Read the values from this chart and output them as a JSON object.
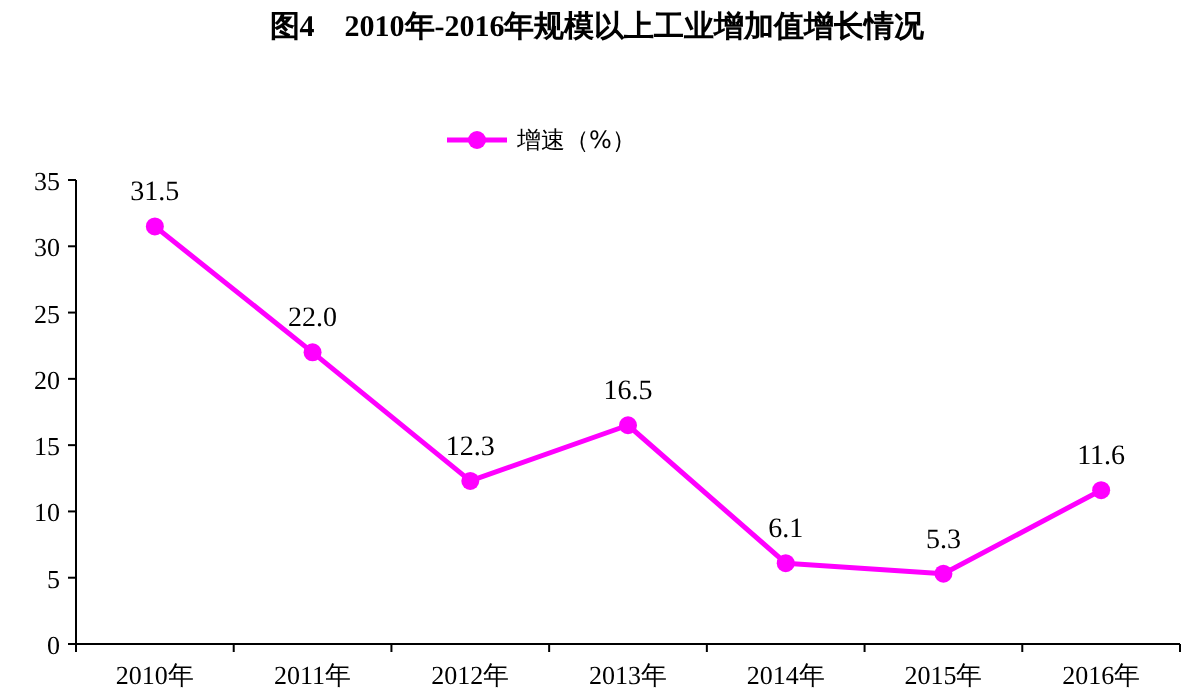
{
  "chart_data": {
    "type": "line",
    "title": "图4　2010年-2016年规模以上工业增加值增长情况",
    "categories": [
      "2010年",
      "2011年",
      "2012年",
      "2013年",
      "2014年",
      "2015年",
      "2016年"
    ],
    "series": [
      {
        "name": "增速（%）",
        "color": "#ff00ff",
        "values": [
          31.5,
          22.0,
          12.3,
          16.5,
          6.1,
          5.3,
          11.6
        ],
        "value_labels": [
          "31.5",
          "22.0",
          "12.3",
          "16.5",
          "6.1",
          "5.3",
          "11.6"
        ]
      }
    ],
    "ylim": [
      0,
      35
    ],
    "yticks": [
      0,
      5,
      10,
      15,
      20,
      25,
      30,
      35
    ],
    "legend": "top",
    "marker": "circle",
    "line_style": "solid",
    "grid": false
  }
}
